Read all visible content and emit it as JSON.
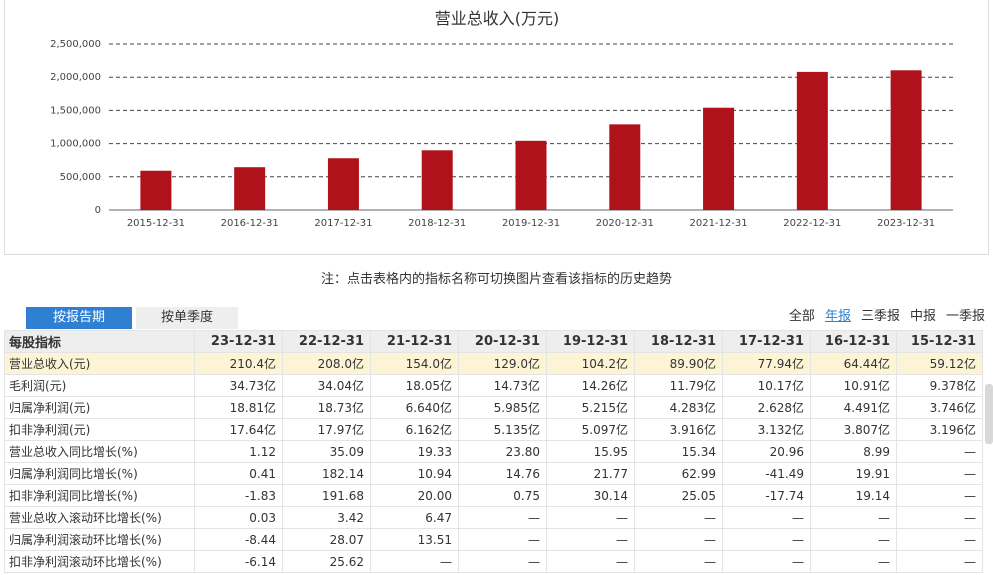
{
  "chart_data": {
    "type": "bar",
    "title": "营业总收入(万元)",
    "categories": [
      "2015-12-31",
      "2016-12-31",
      "2017-12-31",
      "2018-12-31",
      "2019-12-31",
      "2020-12-31",
      "2021-12-31",
      "2022-12-31",
      "2023-12-31"
    ],
    "values": [
      591200,
      644400,
      779400,
      899000,
      1042000,
      1290000,
      1540000,
      2080000,
      2104000
    ],
    "yticks": [
      "0",
      "500,000",
      "1,000,000",
      "1,500,000",
      "2,000,000",
      "2,500,000"
    ],
    "ylim": [
      0,
      2500000
    ],
    "grid": true,
    "bar_color": "#b0121c"
  },
  "note": "注：点击表格内的指标名称可切换图片查看该指标的历史趋势",
  "tabs": [
    {
      "label": "按报告期",
      "active": true
    },
    {
      "label": "按单季度",
      "active": false
    }
  ],
  "filters": [
    {
      "label": "全部",
      "active": false
    },
    {
      "label": "年报",
      "active": true
    },
    {
      "label": "三季报",
      "active": false
    },
    {
      "label": "中报",
      "active": false
    },
    {
      "label": "一季报",
      "active": false
    }
  ],
  "table": {
    "header": [
      "每股指标",
      "23-12-31",
      "22-12-31",
      "21-12-31",
      "20-12-31",
      "19-12-31",
      "18-12-31",
      "17-12-31",
      "16-12-31",
      "15-12-31"
    ],
    "rows": [
      {
        "label": "营业总收入(元)",
        "highlight": true,
        "values": [
          "210.4亿",
          "208.0亿",
          "154.0亿",
          "129.0亿",
          "104.2亿",
          "89.90亿",
          "77.94亿",
          "64.44亿",
          "59.12亿"
        ]
      },
      {
        "label": "毛利润(元)",
        "highlight": false,
        "values": [
          "34.73亿",
          "34.04亿",
          "18.05亿",
          "14.73亿",
          "14.26亿",
          "11.79亿",
          "10.17亿",
          "10.91亿",
          "9.378亿"
        ]
      },
      {
        "label": "归属净利润(元)",
        "highlight": false,
        "values": [
          "18.81亿",
          "18.73亿",
          "6.640亿",
          "5.985亿",
          "5.215亿",
          "4.283亿",
          "2.628亿",
          "4.491亿",
          "3.746亿"
        ]
      },
      {
        "label": "扣非净利润(元)",
        "highlight": false,
        "values": [
          "17.64亿",
          "17.97亿",
          "6.162亿",
          "5.135亿",
          "5.097亿",
          "3.916亿",
          "3.132亿",
          "3.807亿",
          "3.196亿"
        ]
      },
      {
        "label": "营业总收入同比增长(%)",
        "highlight": false,
        "values": [
          "1.12",
          "35.09",
          "19.33",
          "23.80",
          "15.95",
          "15.34",
          "20.96",
          "8.99",
          "—"
        ]
      },
      {
        "label": "归属净利润同比增长(%)",
        "highlight": false,
        "values": [
          "0.41",
          "182.14",
          "10.94",
          "14.76",
          "21.77",
          "62.99",
          "-41.49",
          "19.91",
          "—"
        ]
      },
      {
        "label": "扣非净利润同比增长(%)",
        "highlight": false,
        "values": [
          "-1.83",
          "191.68",
          "20.00",
          "0.75",
          "30.14",
          "25.05",
          "-17.74",
          "19.14",
          "—"
        ]
      },
      {
        "label": "营业总收入滚动环比增长(%)",
        "highlight": false,
        "values": [
          "0.03",
          "3.42",
          "6.47",
          "—",
          "—",
          "—",
          "—",
          "—",
          "—"
        ]
      },
      {
        "label": "归属净利润滚动环比增长(%)",
        "highlight": false,
        "values": [
          "-8.44",
          "28.07",
          "13.51",
          "—",
          "—",
          "—",
          "—",
          "—",
          "—"
        ]
      },
      {
        "label": "扣非净利润滚动环比增长(%)",
        "highlight": false,
        "values": [
          "-6.14",
          "25.62",
          "—",
          "—",
          "—",
          "—",
          "—",
          "—",
          "—"
        ]
      }
    ]
  }
}
